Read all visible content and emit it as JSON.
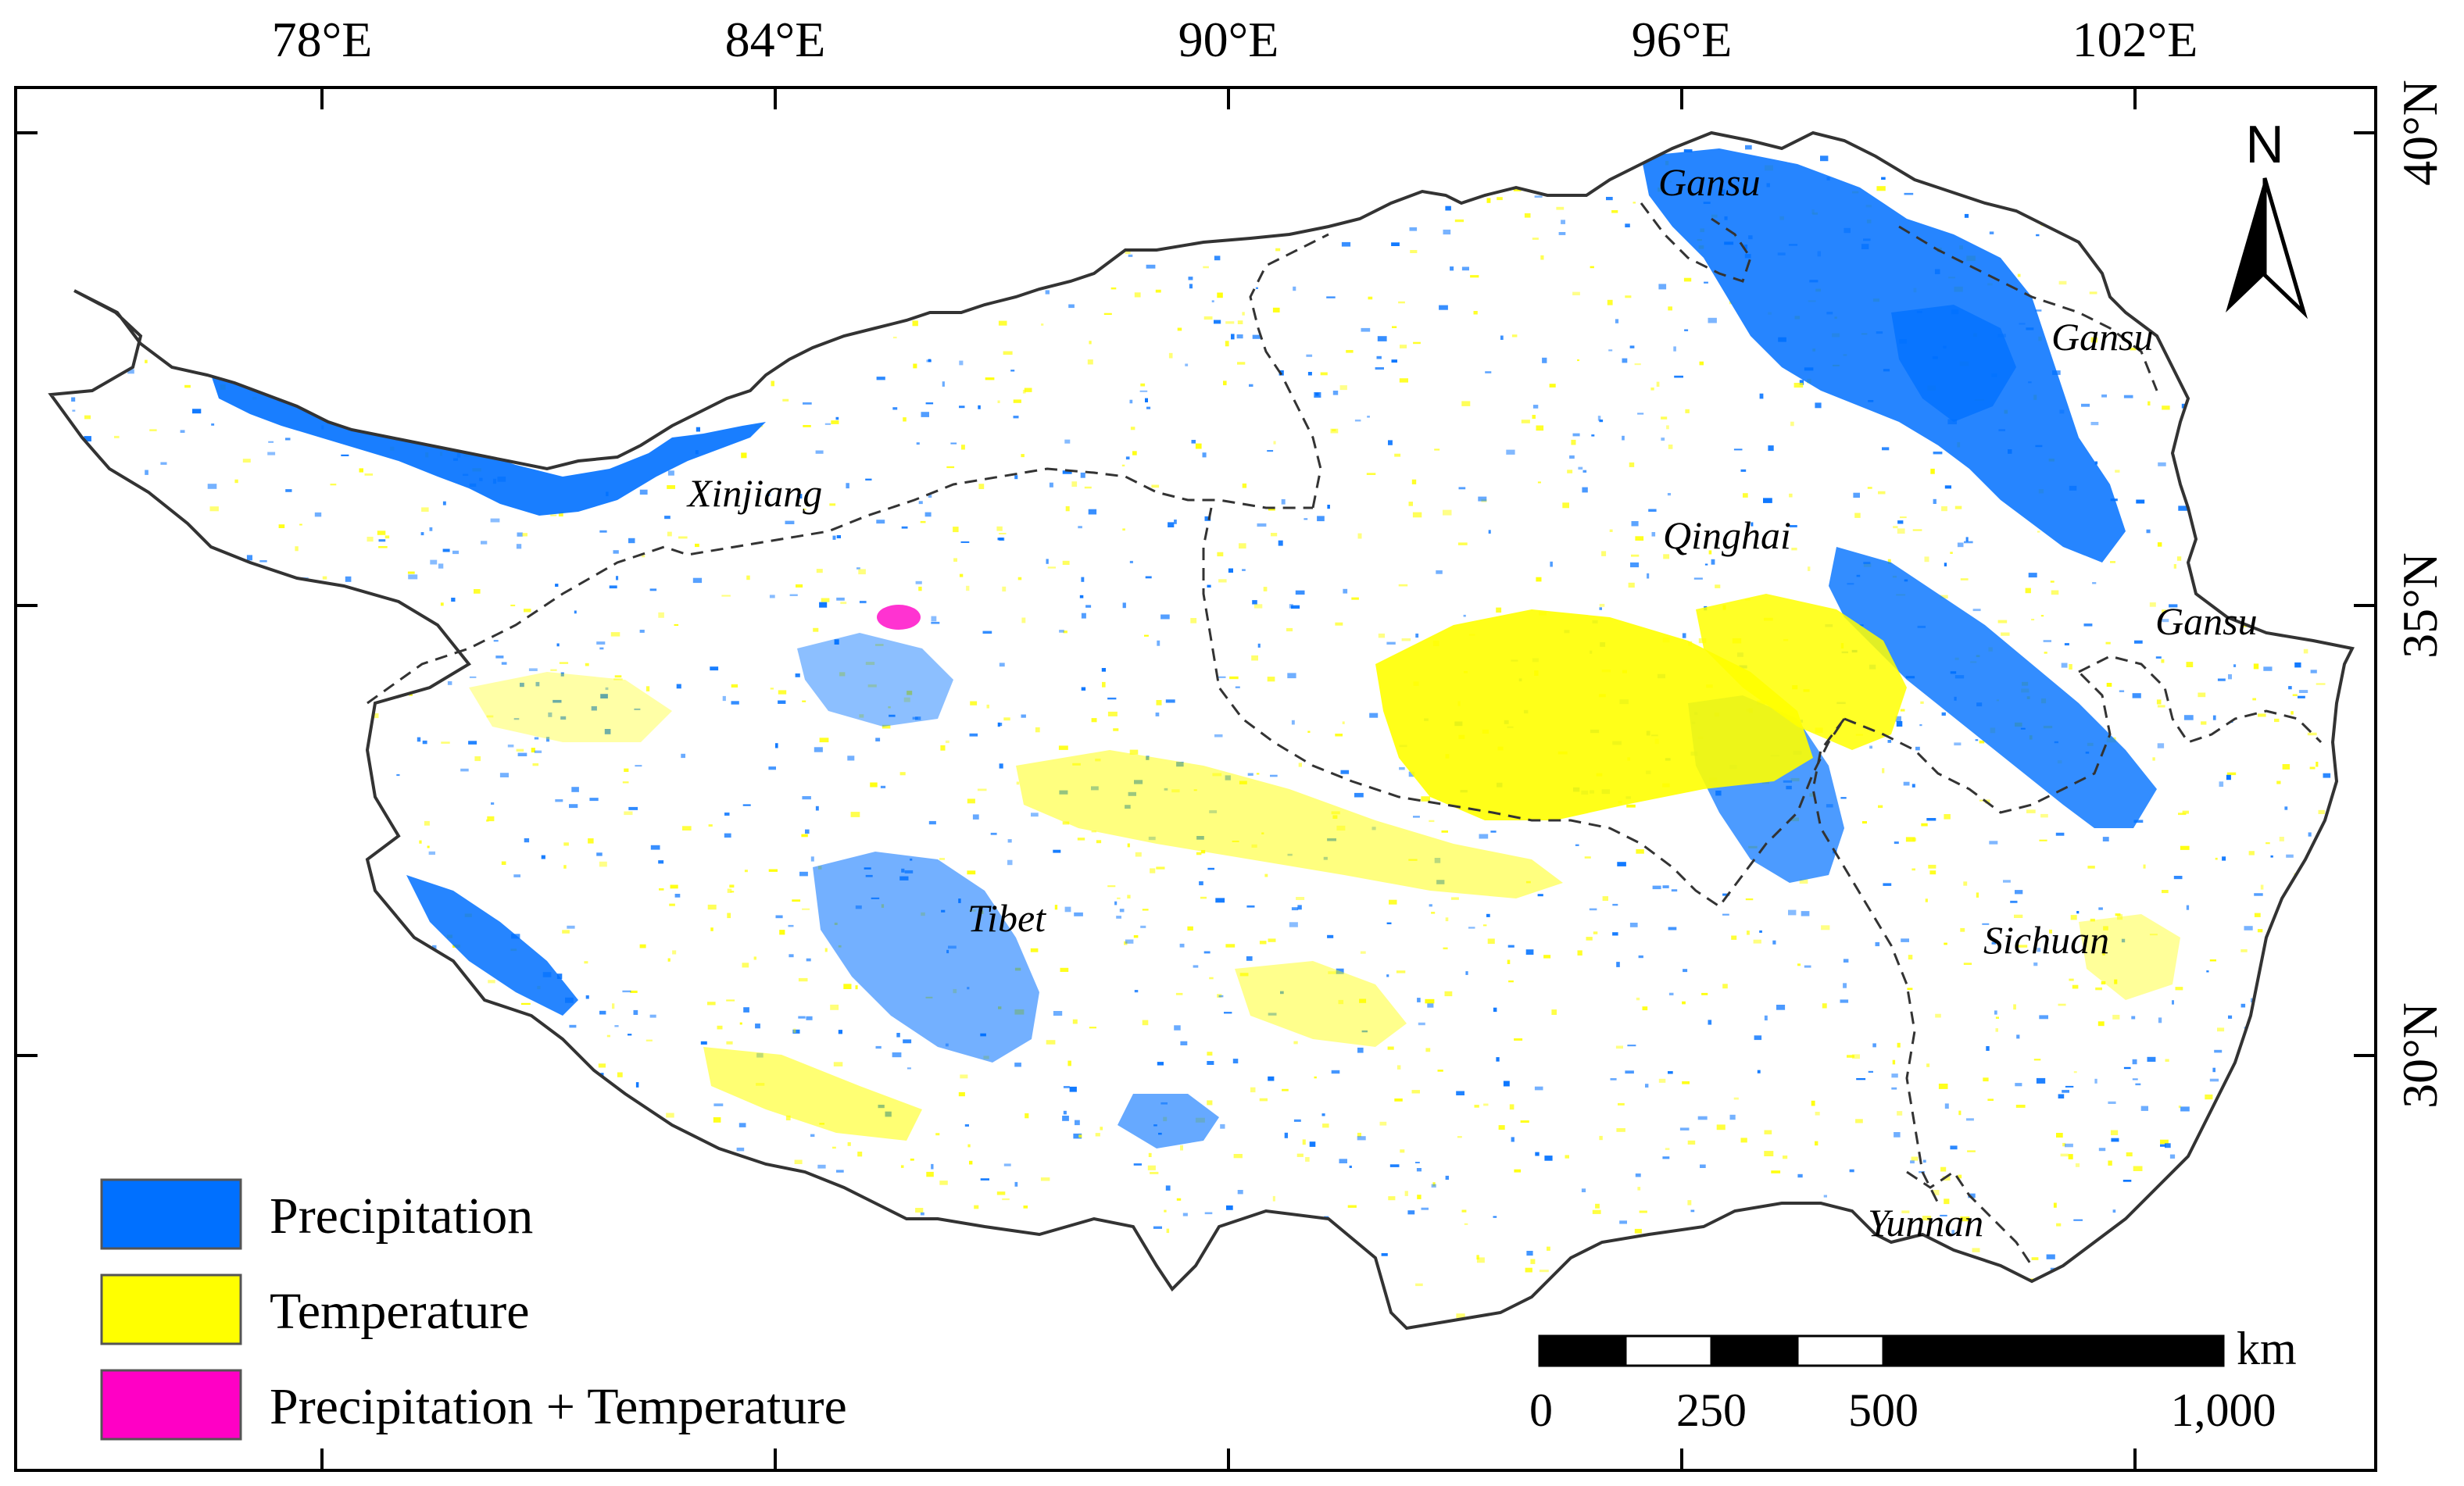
{
  "map": {
    "lon_labels": [
      "78°E",
      "84°E",
      "90°E",
      "96°E",
      "102°E"
    ],
    "lat_labels": [
      "40°N",
      "35°N",
      "30°N"
    ],
    "regions": [
      "Gansu",
      "Gansu",
      "Xinjiang",
      "Qinghai",
      "Gansu",
      "Tibet",
      "Sichuan",
      "Yunnan"
    ],
    "north_arrow": "N",
    "colors": {
      "precipitation": "#0070ff",
      "temperature": "#ffff00",
      "precipitation_temperature": "#ff00c5"
    }
  },
  "legend": {
    "items": [
      {
        "label": "Precipitation",
        "color": "#0070ff"
      },
      {
        "label": "Temperature",
        "color": "#ffff00"
      },
      {
        "label": "Precipitation + Temperature",
        "color": "#ff00c5"
      }
    ]
  },
  "scale_bar": {
    "unit": "km",
    "labels": [
      "0",
      "250",
      "500",
      "1,000"
    ]
  }
}
